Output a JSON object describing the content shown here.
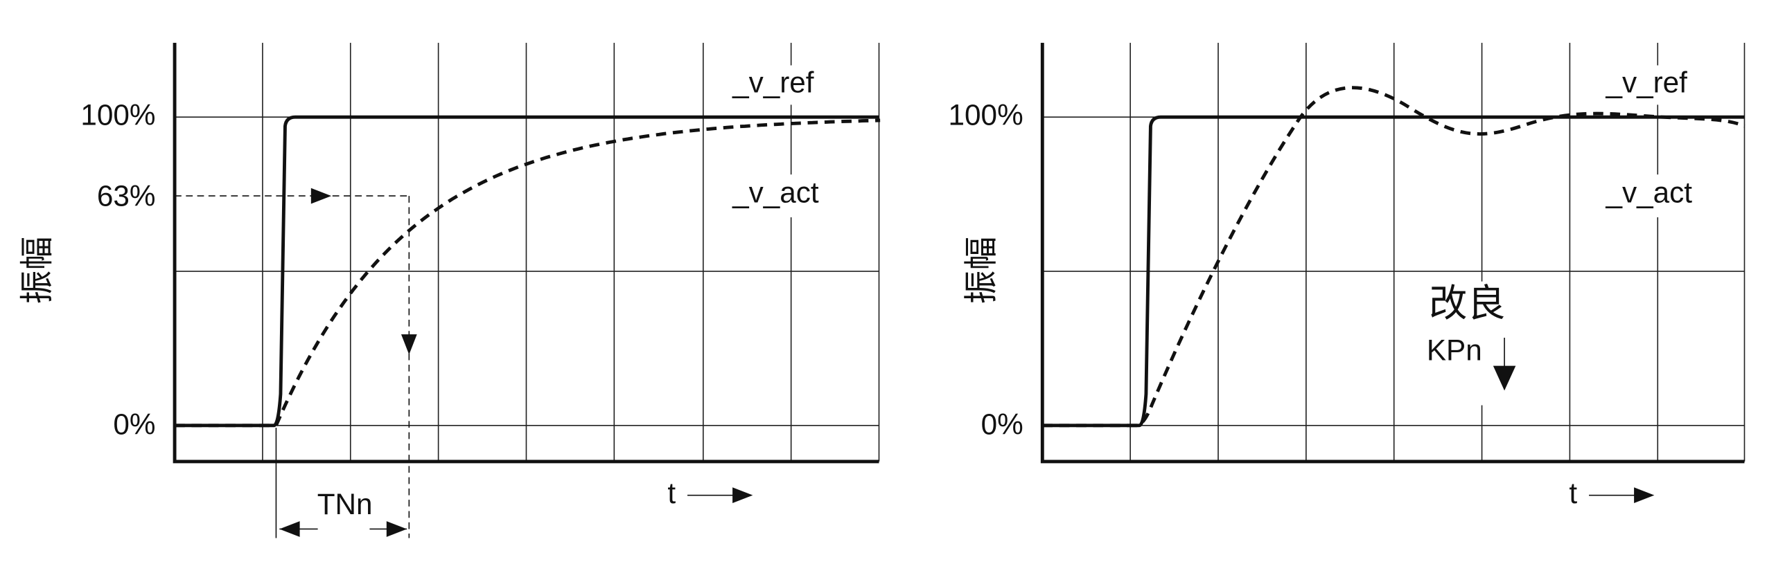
{
  "panels": [
    {
      "y_axis_label": "振幅",
      "y_labels": [
        "100%",
        "63%",
        "0%"
      ],
      "curve_labels": [
        "_v_ref",
        "_v_act"
      ],
      "x_axis_label": "t",
      "annotation": "TNn"
    },
    {
      "y_axis_label": "振幅",
      "y_labels": [
        "100%",
        "0%"
      ],
      "curve_labels": [
        "_v_ref",
        "_v_act"
      ],
      "x_axis_label": "t",
      "annotation": "改良",
      "annotation_sub": "KPn"
    }
  ]
}
